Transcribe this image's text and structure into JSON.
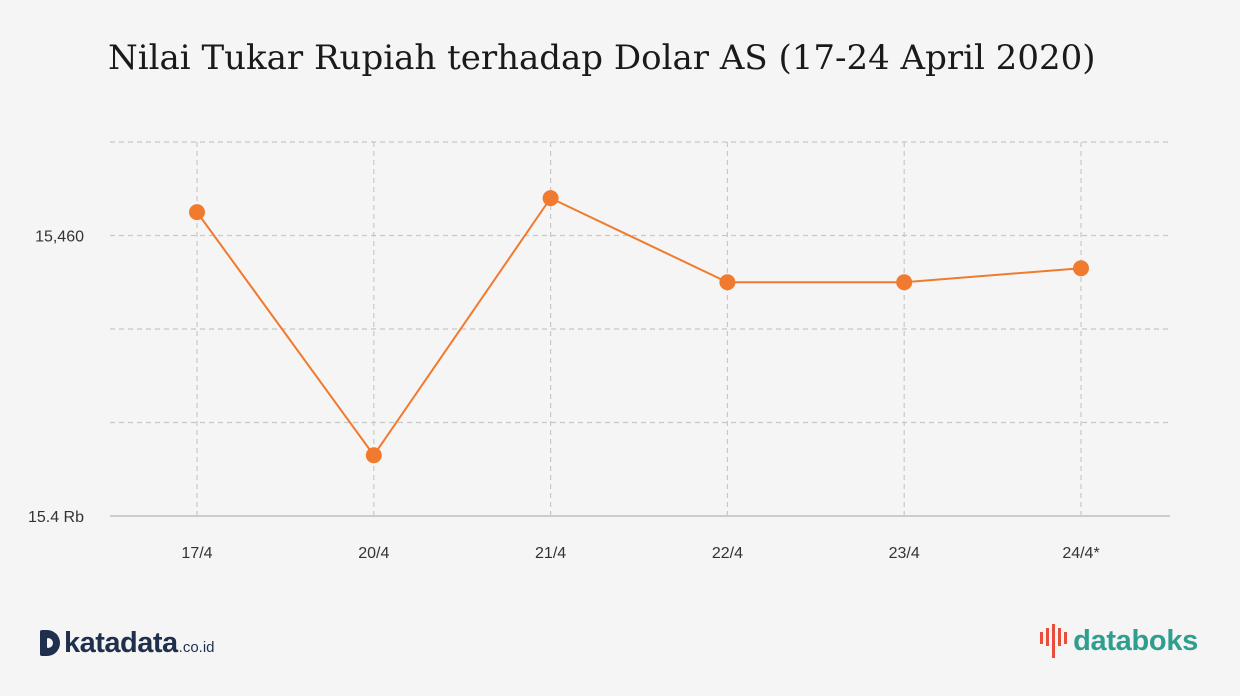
{
  "title": "Nilai Tukar Rupiah terhadap Dolar AS (17-24 April 2020)",
  "colors": {
    "line": "#f07a2e",
    "marker": "#f07a2e",
    "grid": "#c8c8c8",
    "axis": "#cccccc",
    "text": "#333333"
  },
  "chart_data": {
    "type": "line",
    "categories": [
      "17/4",
      "20/4",
      "21/4",
      "22/4",
      "23/4",
      "24/4*"
    ],
    "series": [
      {
        "values": [
          15465,
          15413,
          15468,
          15450,
          15450,
          15453
        ]
      }
    ],
    "yticks": [
      {
        "value": 15400,
        "label": "15.4 Rb"
      },
      {
        "value": 15460,
        "label": "15,460"
      }
    ],
    "ylim": [
      15400,
      15480
    ],
    "grid": true
  },
  "footer": {
    "left_logo": {
      "brand": "katadata",
      "suffix": ".co.id",
      "icon": "katadata-d-icon"
    },
    "right_logo": {
      "brand": "databoks",
      "icon": "databoks-bars-icon"
    }
  }
}
